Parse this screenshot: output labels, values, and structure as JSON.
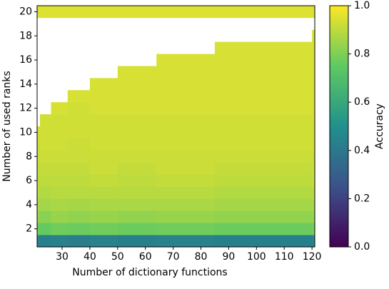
{
  "chart_data": {
    "type": "heatmap",
    "xlabel": "Number of dictionary functions",
    "ylabel": "Number of used ranks",
    "colorbar_label": "Accuracy",
    "colormap": "viridis",
    "x_edges": [
      21,
      22,
      26,
      32,
      40,
      50,
      64,
      85,
      120,
      121
    ],
    "y": [
      1,
      2,
      3,
      4,
      5,
      6,
      7,
      8,
      9,
      10,
      11,
      12,
      13,
      14,
      15,
      16,
      17,
      18,
      19,
      20
    ],
    "values": [
      [
        0.45,
        0.43,
        0.44,
        0.42,
        0.44,
        0.43,
        0.44,
        0.43,
        0.45
      ],
      [
        0.77,
        0.76,
        0.78,
        0.77,
        0.78,
        0.77,
        0.78,
        0.77,
        0.78
      ],
      [
        0.83,
        0.82,
        0.84,
        0.83,
        0.84,
        0.83,
        0.84,
        0.83,
        0.84
      ],
      [
        0.87,
        0.86,
        0.87,
        0.86,
        0.87,
        0.87,
        0.87,
        0.86,
        0.87
      ],
      [
        0.89,
        0.88,
        0.89,
        0.89,
        0.89,
        0.89,
        0.89,
        0.88,
        0.89
      ],
      [
        0.9,
        0.9,
        0.9,
        0.9,
        0.91,
        0.9,
        0.91,
        0.9,
        0.91
      ],
      [
        0.91,
        0.91,
        0.91,
        0.91,
        0.92,
        0.91,
        0.92,
        0.91,
        0.92
      ],
      [
        0.92,
        0.92,
        0.92,
        0.92,
        0.92,
        0.92,
        0.92,
        0.92,
        0.92
      ],
      [
        0.92,
        0.93,
        0.93,
        0.92,
        0.93,
        0.93,
        0.93,
        0.93,
        0.93
      ],
      [
        0.93,
        0.93,
        0.93,
        0.93,
        0.93,
        0.93,
        0.93,
        0.93,
        0.93
      ],
      [
        null,
        0.93,
        0.93,
        0.93,
        0.93,
        0.93,
        0.93,
        0.93,
        0.93
      ],
      [
        null,
        null,
        0.94,
        0.93,
        0.94,
        0.94,
        0.94,
        0.94,
        0.94
      ],
      [
        null,
        null,
        null,
        0.94,
        0.94,
        0.94,
        0.94,
        0.94,
        0.94
      ],
      [
        null,
        null,
        null,
        null,
        0.94,
        0.94,
        0.94,
        0.94,
        0.94
      ],
      [
        null,
        null,
        null,
        null,
        null,
        0.94,
        0.94,
        0.94,
        0.94
      ],
      [
        null,
        null,
        null,
        null,
        null,
        null,
        0.94,
        0.94,
        0.94
      ],
      [
        null,
        null,
        null,
        null,
        null,
        null,
        null,
        0.94,
        0.94
      ],
      [
        null,
        null,
        null,
        null,
        null,
        null,
        null,
        null,
        0.94
      ],
      [
        null,
        null,
        null,
        null,
        null,
        null,
        null,
        null,
        null
      ],
      [
        0.95,
        0.95,
        0.95,
        0.95,
        0.95,
        0.95,
        0.95,
        0.95,
        0.95
      ]
    ],
    "xlim": [
      21,
      121
    ],
    "xticks": [
      30,
      40,
      50,
      60,
      70,
      80,
      90,
      100,
      110,
      120
    ],
    "ylim": [
      0.5,
      20.5
    ],
    "yticks": [
      2,
      4,
      6,
      8,
      10,
      12,
      14,
      16,
      18,
      20
    ],
    "clim": [
      0,
      1
    ],
    "cticks": [
      {
        "value": 0,
        "label": "0.0"
      },
      {
        "value": 0.2,
        "label": "0.2"
      },
      {
        "value": 0.4,
        "label": "0.4"
      },
      {
        "value": 0.6,
        "label": "0.6"
      },
      {
        "value": 0.8,
        "label": "0.8"
      },
      {
        "value": 1,
        "label": "1.0"
      }
    ]
  }
}
